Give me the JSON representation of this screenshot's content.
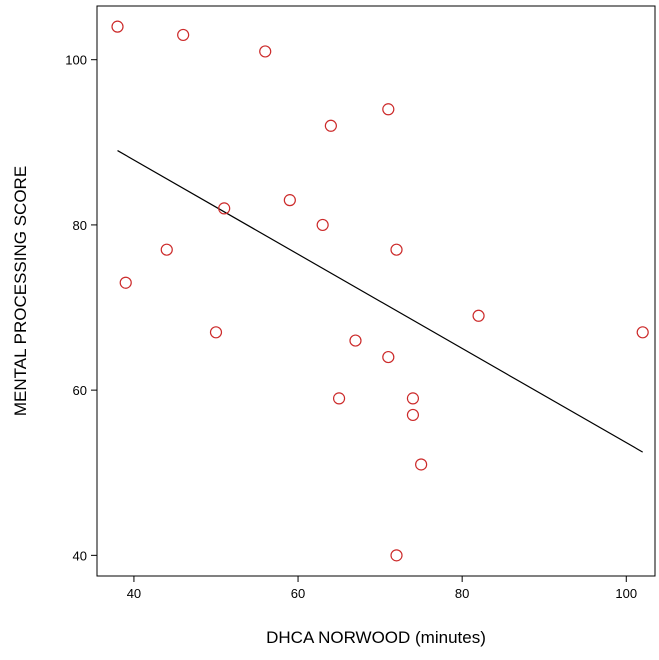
{
  "chart_data": {
    "type": "scatter",
    "title": "",
    "xlabel": "DHCA NORWOOD (minutes)",
    "ylabel": "MENTAL PROCESSING SCORE",
    "xlim": [
      35.5,
      103.5
    ],
    "ylim": [
      37.5,
      106.5
    ],
    "xticks": [
      40,
      60,
      80,
      100
    ],
    "yticks": [
      40,
      60,
      80,
      100
    ],
    "grid": false,
    "marker_color": "#cc2a2a",
    "line_color": "#000000",
    "points": [
      {
        "x": 38,
        "y": 104
      },
      {
        "x": 46,
        "y": 103
      },
      {
        "x": 56,
        "y": 101
      },
      {
        "x": 71,
        "y": 94
      },
      {
        "x": 64,
        "y": 92
      },
      {
        "x": 59,
        "y": 83
      },
      {
        "x": 51,
        "y": 82
      },
      {
        "x": 63,
        "y": 80
      },
      {
        "x": 44,
        "y": 77
      },
      {
        "x": 72,
        "y": 77
      },
      {
        "x": 39,
        "y": 73
      },
      {
        "x": 82,
        "y": 69
      },
      {
        "x": 50,
        "y": 67
      },
      {
        "x": 102,
        "y": 67
      },
      {
        "x": 67,
        "y": 66
      },
      {
        "x": 71,
        "y": 64
      },
      {
        "x": 65,
        "y": 59
      },
      {
        "x": 74,
        "y": 59
      },
      {
        "x": 74,
        "y": 57
      },
      {
        "x": 75,
        "y": 51
      },
      {
        "x": 72,
        "y": 40
      }
    ],
    "fit_line": {
      "x": [
        38,
        102
      ],
      "y": [
        89,
        52.5
      ]
    }
  }
}
